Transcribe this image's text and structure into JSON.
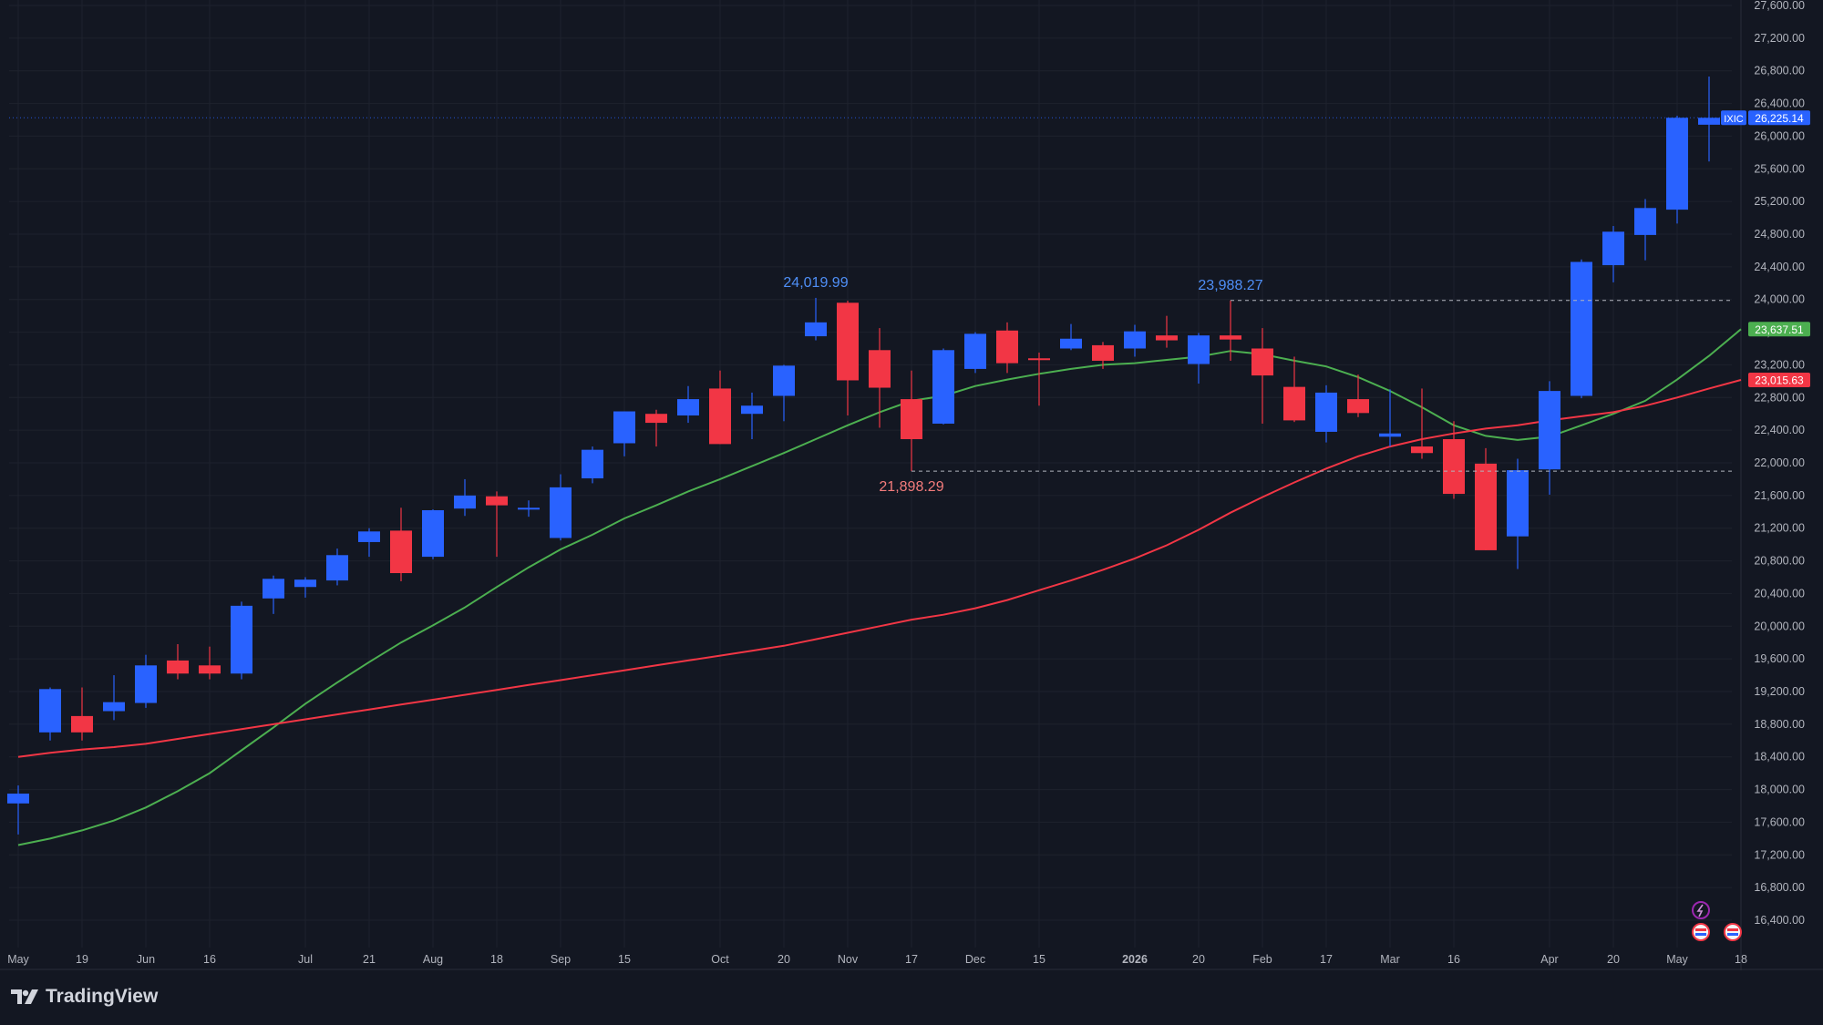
{
  "chart_data": {
    "type": "candlestick",
    "title": "",
    "xlabel": "",
    "ylabel": "",
    "ylim": [
      16300,
      27600
    ],
    "y_ticks": [
      16400,
      16800,
      17200,
      17600,
      18000,
      18400,
      18800,
      19200,
      19600,
      20000,
      20400,
      20800,
      21200,
      21600,
      22000,
      22400,
      22800,
      23200,
      23600,
      24000,
      24400,
      24800,
      25200,
      25600,
      26000,
      26400,
      26800,
      27200,
      27600
    ],
    "y_tick_labels": [
      "16,400.00",
      "16,800.00",
      "17,200.00",
      "17,600.00",
      "18,000.00",
      "18,400.00",
      "18,800.00",
      "19,200.00",
      "19,600.00",
      "20,000.00",
      "20,400.00",
      "20,800.00",
      "21,200.00",
      "21,600.00",
      "22,000.00",
      "22,400.00",
      "22,800.00",
      "23,200.00",
      "23,600.00",
      "24,000.00",
      "24,400.00",
      "24,800.00",
      "25,200.00",
      "25,600.00",
      "26,000.00",
      "26,400.00",
      "26,800.00",
      "27,200.00",
      "27,600.00"
    ],
    "x_tick_labels": [
      {
        "i": 0,
        "label": "May"
      },
      {
        "i": 2,
        "label": "19"
      },
      {
        "i": 4,
        "label": "Jun"
      },
      {
        "i": 6,
        "label": "16"
      },
      {
        "i": 9,
        "label": "Jul"
      },
      {
        "i": 11,
        "label": "21"
      },
      {
        "i": 13,
        "label": "Aug"
      },
      {
        "i": 15,
        "label": "18"
      },
      {
        "i": 17,
        "label": "Sep"
      },
      {
        "i": 19,
        "label": "15"
      },
      {
        "i": 22,
        "label": "Oct"
      },
      {
        "i": 24,
        "label": "20"
      },
      {
        "i": 26,
        "label": "Nov"
      },
      {
        "i": 28,
        "label": "17"
      },
      {
        "i": 30,
        "label": "Dec"
      },
      {
        "i": 32,
        "label": "15"
      },
      {
        "i": 35,
        "label": "2026",
        "bold": true
      },
      {
        "i": 37,
        "label": "20"
      },
      {
        "i": 39,
        "label": "Feb"
      },
      {
        "i": 41,
        "label": "17"
      },
      {
        "i": 43,
        "label": "Mar"
      },
      {
        "i": 45,
        "label": "16"
      },
      {
        "i": 48,
        "label": "Apr"
      },
      {
        "i": 50,
        "label": "20"
      },
      {
        "i": 52,
        "label": "May"
      },
      {
        "i": 54,
        "label": "18"
      }
    ],
    "candles": [
      {
        "o": 17830,
        "h": 18050,
        "l": 17450,
        "c": 17950
      },
      {
        "o": 18700,
        "h": 19250,
        "l": 18600,
        "c": 19230
      },
      {
        "o": 18900,
        "h": 19250,
        "l": 18600,
        "c": 18700
      },
      {
        "o": 18960,
        "h": 19400,
        "l": 18850,
        "c": 19070
      },
      {
        "o": 19060,
        "h": 19650,
        "l": 19000,
        "c": 19520
      },
      {
        "o": 19580,
        "h": 19780,
        "l": 19350,
        "c": 19420
      },
      {
        "o": 19520,
        "h": 19750,
        "l": 19350,
        "c": 19420
      },
      {
        "o": 19420,
        "h": 20300,
        "l": 19350,
        "c": 20250
      },
      {
        "o": 20340,
        "h": 20620,
        "l": 20150,
        "c": 20580
      },
      {
        "o": 20480,
        "h": 20600,
        "l": 20350,
        "c": 20570
      },
      {
        "o": 20560,
        "h": 20950,
        "l": 20500,
        "c": 20870
      },
      {
        "o": 21030,
        "h": 21200,
        "l": 20850,
        "c": 21160
      },
      {
        "o": 21170,
        "h": 21450,
        "l": 20550,
        "c": 20650
      },
      {
        "o": 20850,
        "h": 21430,
        "l": 20820,
        "c": 21420
      },
      {
        "o": 21440,
        "h": 21800,
        "l": 21350,
        "c": 21600
      },
      {
        "o": 21590,
        "h": 21650,
        "l": 20850,
        "c": 21480
      },
      {
        "o": 21450,
        "h": 21540,
        "l": 21340,
        "c": 21450
      },
      {
        "o": 21080,
        "h": 21860,
        "l": 21050,
        "c": 21700
      },
      {
        "o": 21810,
        "h": 22200,
        "l": 21750,
        "c": 22160
      },
      {
        "o": 22240,
        "h": 22630,
        "l": 22080,
        "c": 22630
      },
      {
        "o": 22600,
        "h": 22650,
        "l": 22200,
        "c": 22490
      },
      {
        "o": 22580,
        "h": 22940,
        "l": 22490,
        "c": 22780
      },
      {
        "o": 22910,
        "h": 23130,
        "l": 22230,
        "c": 22230
      },
      {
        "o": 22600,
        "h": 22860,
        "l": 22290,
        "c": 22700
      },
      {
        "o": 22820,
        "h": 23200,
        "l": 22510,
        "c": 23190
      },
      {
        "o": 23550,
        "h": 24020,
        "l": 23500,
        "c": 23720
      },
      {
        "o": 23960,
        "h": 23985,
        "l": 22580,
        "c": 23010
      },
      {
        "o": 23380,
        "h": 23650,
        "l": 22430,
        "c": 22920
      },
      {
        "o": 22780,
        "h": 23130,
        "l": 21898,
        "c": 22290
      },
      {
        "o": 22480,
        "h": 23400,
        "l": 22470,
        "c": 23380
      },
      {
        "o": 23150,
        "h": 23600,
        "l": 23100,
        "c": 23580
      },
      {
        "o": 23620,
        "h": 23720,
        "l": 23100,
        "c": 23220
      },
      {
        "o": 23280,
        "h": 23350,
        "l": 22700,
        "c": 23260
      },
      {
        "o": 23400,
        "h": 23700,
        "l": 23380,
        "c": 23520
      },
      {
        "o": 23440,
        "h": 23480,
        "l": 23150,
        "c": 23250
      },
      {
        "o": 23400,
        "h": 23690,
        "l": 23300,
        "c": 23610
      },
      {
        "o": 23560,
        "h": 23800,
        "l": 23410,
        "c": 23500
      },
      {
        "o": 23210,
        "h": 23590,
        "l": 22970,
        "c": 23560
      },
      {
        "o": 23560,
        "h": 23988,
        "l": 23250,
        "c": 23510
      },
      {
        "o": 23400,
        "h": 23650,
        "l": 22480,
        "c": 23070
      },
      {
        "o": 22930,
        "h": 23300,
        "l": 22500,
        "c": 22520
      },
      {
        "o": 22380,
        "h": 22950,
        "l": 22250,
        "c": 22860
      },
      {
        "o": 22780,
        "h": 23080,
        "l": 22560,
        "c": 22610
      },
      {
        "o": 22320,
        "h": 22900,
        "l": 22200,
        "c": 22360
      },
      {
        "o": 22200,
        "h": 22910,
        "l": 22050,
        "c": 22120
      },
      {
        "o": 22290,
        "h": 22510,
        "l": 21560,
        "c": 21620
      },
      {
        "o": 21990,
        "h": 22180,
        "l": 20930,
        "c": 20930
      },
      {
        "o": 21100,
        "h": 22050,
        "l": 20700,
        "c": 21910
      },
      {
        "o": 21920,
        "h": 23000,
        "l": 21610,
        "c": 22880
      },
      {
        "o": 22820,
        "h": 24490,
        "l": 22790,
        "c": 24460
      },
      {
        "o": 24420,
        "h": 24900,
        "l": 24210,
        "c": 24830
      },
      {
        "o": 24790,
        "h": 25230,
        "l": 24480,
        "c": 25120
      },
      {
        "o": 25100,
        "h": 26250,
        "l": 24930,
        "c": 26225
      },
      {
        "o": 26140,
        "h": 26730,
        "l": 25690,
        "c": 26225
      }
    ],
    "series": [
      {
        "name": "",
        "color": "#4caf50",
        "values": [
          17320,
          17400,
          17500,
          17620,
          17780,
          17980,
          18200,
          18480,
          18760,
          19050,
          19310,
          19560,
          19800,
          20010,
          20230,
          20480,
          20720,
          20940,
          21120,
          21320,
          21480,
          21650,
          21800,
          21960,
          22120,
          22290,
          22460,
          22620,
          22760,
          22820,
          22940,
          23020,
          23090,
          23150,
          23200,
          23220,
          23260,
          23300,
          23370,
          23330,
          23250,
          23180,
          23050,
          22880,
          22680,
          22460,
          22330,
          22280,
          22320,
          22460,
          22600,
          22760,
          23020,
          23310,
          23637
        ]
      },
      {
        "name": "",
        "color": "#f23645",
        "values": [
          18400,
          18450,
          18490,
          18520,
          18560,
          18620,
          18680,
          18740,
          18800,
          18860,
          18920,
          18980,
          19040,
          19100,
          19160,
          19220,
          19280,
          19340,
          19400,
          19460,
          19520,
          19580,
          19640,
          19700,
          19760,
          19840,
          19920,
          20000,
          20080,
          20140,
          20220,
          20320,
          20440,
          20560,
          20690,
          20830,
          20990,
          21180,
          21390,
          21580,
          21760,
          21930,
          22080,
          22200,
          22290,
          22360,
          22420,
          22460,
          22520,
          22570,
          22620,
          22700,
          22800,
          22910,
          23015
        ]
      }
    ],
    "annotations": [
      {
        "text": "24,019.99",
        "i": 25,
        "y": 24020,
        "color": "#4f8ff7",
        "position": "above"
      },
      {
        "text": "23,988.27",
        "i": 38,
        "y": 23988,
        "color": "#4f8ff7",
        "position": "above"
      },
      {
        "text": "21,898.29",
        "i": 28,
        "y": 21898,
        "color": "#f47c7c",
        "position": "below"
      }
    ],
    "hlines": [
      {
        "y": 23988,
        "from_i": 38,
        "color": "#b2b5be"
      },
      {
        "y": 21898,
        "from_i": 28,
        "color": "#b2b5be"
      }
    ],
    "price_labels": [
      {
        "text": "26,225.14",
        "y": 26225,
        "bg": "#2962ff",
        "tag": "IXIC"
      },
      {
        "text": "23,637.51",
        "y": 23637,
        "bg": "#4caf50"
      },
      {
        "text": "23,015.63",
        "y": 23015,
        "bg": "#f23645"
      }
    ],
    "colors": {
      "up": "#2962ff",
      "down": "#f23645",
      "background": "#131722",
      "grid": "#1e222d",
      "text": "#b2b5be"
    },
    "grid": true
  },
  "brand": {
    "name": "TradingView"
  }
}
